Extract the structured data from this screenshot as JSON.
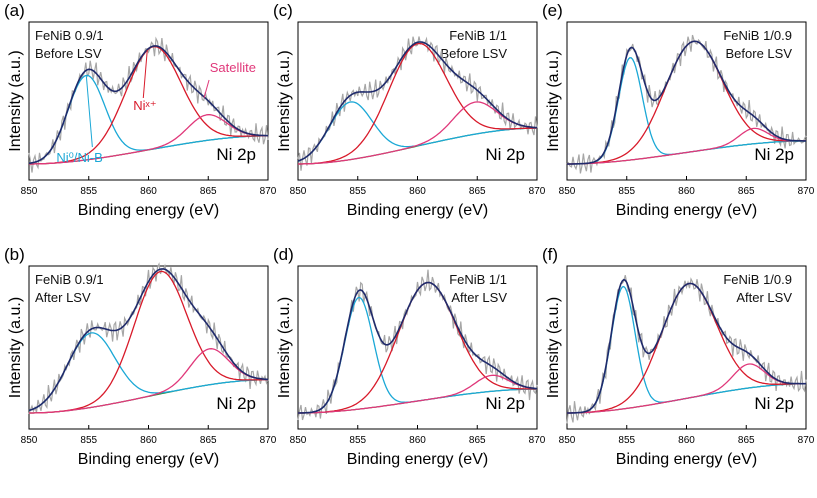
{
  "figure": {
    "y_axis_label": "Intensity (a.u.)",
    "x_axis_label": "Binding energy (eV)",
    "element_label": "Ni 2p"
  },
  "colors": {
    "raw": "#a6a6a6",
    "envelope": "#1f2a6b",
    "ni0": "#1ba8d6",
    "nix": "#d81a2a",
    "satellite": "#e0387a",
    "background": "#2e8b3a",
    "ni0_annotation": "#1ba8d6",
    "nix_annotation": "#d81a2a",
    "satellite_annotation": "#e0387a",
    "axis": "#000000"
  },
  "chart_data": [
    {
      "panel": "(a)",
      "type": "line",
      "title": "FeNiB 0.9/1 Before LSV",
      "sample": "FeNiB 0.9/1",
      "condition": "Before LSV",
      "xlim": [
        850,
        870
      ],
      "xticks": [
        850,
        855,
        860,
        865,
        870
      ],
      "xlabel": "Binding energy (eV)",
      "ylabel": "Intensity (a.u.)",
      "annotations": [
        "Ni⁰/Ni-B",
        "Niˣ⁺",
        "Satellite"
      ],
      "background": {
        "start": 0.0,
        "end": 0.22
      },
      "series": [
        {
          "name": "Ni⁰/Ni-B",
          "center": 854.8,
          "sigma": 1.55,
          "height": 0.66
        },
        {
          "name": "Niˣ⁺",
          "center": 860.4,
          "sigma": 2.3,
          "height": 0.8
        },
        {
          "name": "Satellite",
          "center": 864.9,
          "sigma": 1.6,
          "height": 0.2
        }
      ]
    },
    {
      "panel": "(b)",
      "type": "line",
      "title": "FeNiB 0.9/1 After LSV",
      "sample": "FeNiB 0.9/1",
      "condition": "After LSV",
      "xlim": [
        850,
        870
      ],
      "xticks": [
        850,
        855,
        860,
        865,
        870
      ],
      "xlabel": "Binding energy (eV)",
      "ylabel": "Intensity (a.u.)",
      "annotations": [],
      "background": {
        "start": 0.0,
        "end": 0.25
      },
      "series": [
        {
          "name": "Ni⁰/Ni-B",
          "center": 855.2,
          "sigma": 2.0,
          "height": 0.56
        },
        {
          "name": "Niˣ⁺",
          "center": 861.0,
          "sigma": 2.2,
          "height": 0.92
        },
        {
          "name": "Satellite",
          "center": 865.1,
          "sigma": 1.6,
          "height": 0.27
        }
      ]
    },
    {
      "panel": "(c)",
      "type": "line",
      "title": "FeNiB 1/1 Before LSV",
      "sample": "FeNiB 1/1",
      "condition": "Before LSV",
      "xlim": [
        850,
        870
      ],
      "xticks": [
        850,
        855,
        860,
        865,
        870
      ],
      "xlabel": "Binding energy (eV)",
      "ylabel": "Intensity (a.u.)",
      "annotations": [],
      "background": {
        "start": 0.0,
        "end": 0.28
      },
      "series": [
        {
          "name": "Ni⁰/Ni-B",
          "center": 854.4,
          "sigma": 1.8,
          "height": 0.45
        },
        {
          "name": "Niˣ⁺",
          "center": 860.0,
          "sigma": 2.4,
          "height": 0.8
        },
        {
          "name": "Satellite",
          "center": 864.8,
          "sigma": 1.8,
          "height": 0.25
        }
      ]
    },
    {
      "panel": "(d)",
      "type": "line",
      "title": "FeNiB 1/1 After LSV",
      "sample": "FeNiB 1/1",
      "condition": "After LSV",
      "xlim": [
        850,
        870
      ],
      "xticks": [
        850,
        855,
        860,
        865,
        870
      ],
      "xlabel": "Binding energy (eV)",
      "ylabel": "Intensity (a.u.)",
      "annotations": [],
      "background": {
        "start": 0.0,
        "end": 0.18
      },
      "series": [
        {
          "name": "Ni⁰/Ni-B",
          "center": 855.1,
          "sigma": 1.2,
          "height": 0.84
        },
        {
          "name": "Niˣ⁺",
          "center": 860.8,
          "sigma": 2.4,
          "height": 0.88
        },
        {
          "name": "Satellite",
          "center": 866.2,
          "sigma": 1.4,
          "height": 0.12
        }
      ]
    },
    {
      "panel": "(e)",
      "type": "line",
      "title": "FeNiB 1/0.9 Before LSV",
      "sample": "FeNiB 1/0.9",
      "condition": "Before LSV",
      "xlim": [
        850,
        870
      ],
      "xticks": [
        850,
        855,
        860,
        865,
        870
      ],
      "xlabel": "Binding energy (eV)",
      "ylabel": "Intensity (a.u.)",
      "annotations": [],
      "background": {
        "start": 0.0,
        "end": 0.18
      },
      "series": [
        {
          "name": "Ni⁰/Ni-B",
          "center": 855.3,
          "sigma": 1.0,
          "height": 0.8
        },
        {
          "name": "Niˣ⁺",
          "center": 860.6,
          "sigma": 2.4,
          "height": 0.86
        },
        {
          "name": "Satellite",
          "center": 865.6,
          "sigma": 1.2,
          "height": 0.12
        }
      ]
    },
    {
      "panel": "(f)",
      "type": "line",
      "title": "FeNiB 1/0.9 After LSV",
      "sample": "FeNiB 1/0.9",
      "condition": "After LSV",
      "xlim": [
        850,
        870
      ],
      "xticks": [
        850,
        855,
        860,
        865,
        870
      ],
      "xlabel": "Binding energy (eV)",
      "ylabel": "Intensity (a.u.)",
      "annotations": [],
      "background": {
        "start": 0.0,
        "end": 0.22
      },
      "series": [
        {
          "name": "Ni⁰/Ni-B",
          "center": 854.7,
          "sigma": 1.0,
          "height": 0.92
        },
        {
          "name": "Niˣ⁺",
          "center": 860.2,
          "sigma": 2.3,
          "height": 0.86
        },
        {
          "name": "Satellite",
          "center": 865.2,
          "sigma": 1.3,
          "height": 0.18
        }
      ]
    }
  ]
}
